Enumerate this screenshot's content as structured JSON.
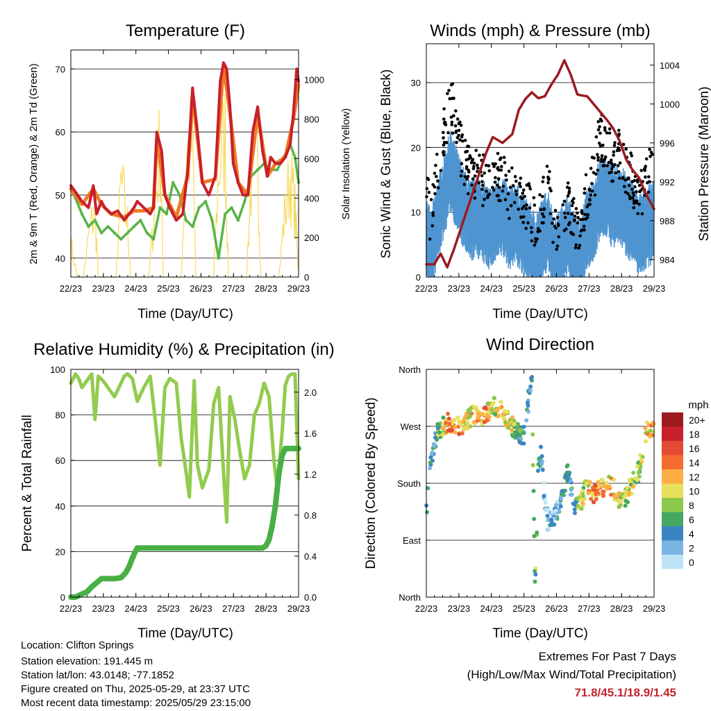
{
  "colors": {
    "temp_2m": "#c8202a",
    "temp_9m": "#f07a25",
    "dewpoint": "#58b548",
    "solar": "#f6d95a",
    "wind": "#4f95d0",
    "gust": "#000000",
    "pressure": "#9b1b1f",
    "rh": "#93cb4e",
    "precip": "#48b045",
    "extreme_value": "#c0262c"
  },
  "x_ticks": [
    "22/23",
    "23/23",
    "24/23",
    "25/23",
    "26/23",
    "27/23",
    "28/23",
    "29/23"
  ],
  "charts": {
    "temperature": {
      "title": "Temperature (F)",
      "xlabel": "Time (Day/UTC)",
      "ylabel_left": "2m & 9m T (Red, Orange) & 2m Td (Green)",
      "ylabel_right": "Solar Insolation (Yellow)",
      "left_ticks": [
        "40",
        "50",
        "60",
        "70"
      ],
      "right_ticks": [
        "0",
        "200",
        "400",
        "600",
        "800",
        "1000"
      ]
    },
    "winds": {
      "title": "Winds (mph) & Pressure (mb)",
      "xlabel": "Time (Day/UTC)",
      "ylabel_left": "Sonic Wind & Gust (Blue, Black)",
      "ylabel_right": "Station Pressure (Maroon)",
      "left_ticks": [
        "0",
        "10",
        "20",
        "30"
      ],
      "right_ticks": [
        "984",
        "988",
        "992",
        "996",
        "1000",
        "1004"
      ]
    },
    "humidity": {
      "title": "Relative Humidity (%) & Precipitation (in)",
      "xlabel": "Time (Day/UTC)",
      "ylabel_left": "Percent & Total Rainfall",
      "left_ticks": [
        "0",
        "20",
        "40",
        "60",
        "80",
        "100"
      ],
      "right_ticks": [
        "0.0",
        "0.4",
        "0.8",
        "1.2",
        "1.6",
        "2.0"
      ]
    },
    "direction": {
      "title": "Wind Direction",
      "xlabel": "Time (Day/UTC)",
      "ylabel_left": "Direction (Colored By Speed)",
      "left_ticks": [
        "North",
        "East",
        "South",
        "West",
        "North"
      ],
      "legend_title": "mph",
      "legend_labels": [
        "20+",
        "18",
        "16",
        "14",
        "12",
        "10",
        "8",
        "6",
        "4",
        "2",
        "0"
      ],
      "legend_colors": [
        "#9b1b1f",
        "#c8202a",
        "#e34a33",
        "#f46d2f",
        "#fdae42",
        "#e8e05a",
        "#8cc84b",
        "#45a862",
        "#3b84c4",
        "#7ab4e3",
        "#bfe3f6"
      ]
    }
  },
  "chart_data": [
    {
      "type": "line",
      "name_ref": "temperature",
      "x_days": [
        22.958,
        29.958
      ],
      "ylim": [
        37,
        73
      ],
      "ylim_right": [
        0,
        1150
      ],
      "series": [
        {
          "name": "2m T",
          "x": [
            22.96,
            23.1,
            23.3,
            23.5,
            23.65,
            23.75,
            23.9,
            24.0,
            24.2,
            24.4,
            24.6,
            24.75,
            24.9,
            25.0,
            25.2,
            25.4,
            25.5,
            25.6,
            25.75,
            25.85,
            26.0,
            26.2,
            26.4,
            26.55,
            26.7,
            26.85,
            27.0,
            27.2,
            27.4,
            27.55,
            27.65,
            27.75,
            27.85,
            27.95,
            28.1,
            28.25,
            28.4,
            28.55,
            28.7,
            28.85,
            29.0,
            29.1,
            29.25,
            29.4,
            29.55,
            29.7,
            29.8,
            29.9,
            29.958
          ],
          "values": [
            51.5,
            50.5,
            49,
            48,
            51.5,
            47,
            49,
            48,
            47,
            47.5,
            46,
            47,
            48,
            49,
            48,
            47,
            48,
            60,
            57,
            50,
            48,
            46,
            47,
            54,
            67,
            60,
            52,
            50,
            53,
            68,
            71,
            70,
            64,
            55,
            52,
            50,
            50,
            60,
            64,
            57,
            53,
            56,
            55,
            55,
            56,
            58,
            63,
            70,
            68
          ]
        },
        {
          "name": "9m T",
          "x": [
            22.96,
            23.3,
            23.65,
            23.9,
            24.2,
            24.6,
            24.9,
            25.2,
            25.5,
            25.6,
            25.85,
            26.2,
            26.55,
            26.7,
            27.0,
            27.4,
            27.65,
            27.85,
            28.1,
            28.4,
            28.7,
            29.0,
            29.25,
            29.55,
            29.8,
            29.958
          ],
          "values": [
            51,
            48.5,
            51,
            48.5,
            47,
            46.5,
            47.5,
            47.5,
            48,
            59,
            50,
            46.5,
            53,
            66,
            52,
            52.5,
            70.5,
            63,
            52,
            50,
            63,
            53,
            55,
            56,
            62,
            67.5
          ]
        },
        {
          "name": "2m Td",
          "x": [
            22.96,
            23.1,
            23.3,
            23.5,
            23.7,
            23.9,
            24.1,
            24.3,
            24.5,
            24.7,
            24.9,
            25.1,
            25.3,
            25.5,
            25.7,
            25.9,
            26.1,
            26.3,
            26.5,
            26.7,
            26.9,
            27.1,
            27.3,
            27.5,
            27.7,
            27.9,
            28.1,
            28.3,
            28.5,
            28.7,
            28.9,
            29.1,
            29.3,
            29.5,
            29.7,
            29.85,
            29.958
          ],
          "values": [
            51,
            49.5,
            47,
            45,
            46,
            44,
            45,
            44,
            43,
            44,
            45,
            46,
            44,
            43,
            48,
            47,
            52,
            50,
            46,
            45,
            48,
            49,
            46,
            40,
            47,
            48,
            46,
            49,
            53,
            54,
            55,
            54,
            54,
            56,
            58,
            56,
            52
          ]
        },
        {
          "name": "Solar",
          "x": [
            22.96,
            23.15,
            23.35,
            23.5,
            23.7,
            23.8,
            24.1,
            24.35,
            24.5,
            24.7,
            24.8,
            25.1,
            25.35,
            25.5,
            25.7,
            25.8,
            26.1,
            26.35,
            26.5,
            26.7,
            26.8,
            27.1,
            27.35,
            27.5,
            27.7,
            27.8,
            28.1,
            28.35,
            28.5,
            28.7,
            28.8,
            29.1,
            29.35,
            29.5,
            29.7,
            29.85,
            29.958
          ],
          "values": [
            250,
            0,
            0,
            300,
            500,
            0,
            0,
            0,
            700,
            400,
            0,
            0,
            0,
            400,
            1000,
            0,
            0,
            0,
            900,
            1000,
            0,
            0,
            0,
            800,
            1050,
            0,
            0,
            0,
            700,
            900,
            0,
            0,
            0,
            400,
            750,
            500,
            0
          ]
        }
      ]
    },
    {
      "type": "scatter",
      "name_ref": "winds",
      "ylim": [
        0,
        36
      ],
      "ylim_right": [
        982.2,
        1006.2
      ],
      "series": [
        {
          "name": "Sonic Wind",
          "x": [
            22.96,
            23.1,
            23.3,
            23.5,
            23.7,
            23.9,
            24.1,
            24.3,
            24.5,
            24.7,
            24.9,
            25.1,
            25.3,
            25.5,
            25.7,
            25.9,
            26.1,
            26.3,
            26.5,
            26.7,
            26.9,
            27.1,
            27.3,
            27.5,
            27.7,
            27.9,
            28.1,
            28.3,
            28.5,
            28.7,
            28.9,
            29.1,
            29.3,
            29.5,
            29.7,
            29.9
          ],
          "values": [
            7,
            4,
            9,
            13,
            17,
            14,
            11,
            9,
            10,
            9,
            8,
            9,
            10,
            8,
            9,
            7,
            6,
            4,
            6,
            8,
            3,
            5,
            7,
            4,
            3,
            8,
            9,
            13,
            13,
            11,
            12,
            10,
            9,
            7,
            8,
            9
          ]
        },
        {
          "name": "Gust",
          "x": [
            22.96,
            23.1,
            23.3,
            23.5,
            23.7,
            23.9,
            24.1,
            24.3,
            24.5,
            24.7,
            24.9,
            25.1,
            25.3,
            25.5,
            25.7,
            25.9,
            26.1,
            26.3,
            26.5,
            26.7,
            26.9,
            27.1,
            27.3,
            27.5,
            27.7,
            27.9,
            28.1,
            28.3,
            28.5,
            28.7,
            28.9,
            29.1,
            29.3,
            29.5,
            29.7,
            29.9
          ],
          "values": [
            14,
            8,
            17,
            22,
            28,
            22,
            18,
            16,
            16,
            15,
            14,
            15,
            16,
            13,
            14,
            12,
            11,
            8,
            11,
            14,
            7,
            9,
            12,
            8,
            7,
            13,
            15,
            22,
            20,
            18,
            19,
            16,
            15,
            12,
            14,
            17
          ]
        },
        {
          "name": "Station Pressure",
          "x": [
            22.96,
            23.2,
            23.4,
            23.6,
            23.8,
            24.0,
            24.3,
            24.6,
            24.8,
            25.0,
            25.3,
            25.6,
            25.8,
            26.0,
            26.2,
            26.4,
            26.6,
            26.8,
            27.0,
            27.2,
            27.4,
            27.6,
            27.7,
            27.9,
            28.1,
            28.3,
            28.5,
            28.7,
            28.9,
            29.1,
            29.3,
            29.5,
            29.7,
            29.958
          ],
          "values": [
            983.5,
            983.5,
            984.6,
            983.2,
            985,
            987,
            990,
            993,
            995,
            996.6,
            996,
            996.9,
            999.4,
            1000.5,
            1001.2,
            1000.6,
            1000.8,
            1002,
            1003,
            1004.5,
            1003,
            1001,
            1000.9,
            1000.8,
            1000,
            999.2,
            998.4,
            997.5,
            996.2,
            994.3,
            993.2,
            992.4,
            990.8,
            989.2
          ]
        }
      ]
    },
    {
      "type": "line",
      "name_ref": "humidity",
      "ylim": [
        0,
        100
      ],
      "ylim_right": [
        0,
        2.2222
      ],
      "series": [
        {
          "name": "Relative Humidity",
          "x": [
            22.96,
            23.1,
            23.2,
            23.3,
            23.45,
            23.6,
            23.7,
            23.8,
            23.95,
            24.1,
            24.3,
            24.5,
            24.6,
            24.7,
            24.85,
            25.0,
            25.2,
            25.4,
            25.55,
            25.7,
            25.85,
            26.0,
            26.2,
            26.35,
            26.5,
            26.6,
            26.75,
            26.85,
            27.0,
            27.2,
            27.35,
            27.5,
            27.65,
            27.75,
            27.85,
            28.0,
            28.15,
            28.3,
            28.45,
            28.6,
            28.75,
            28.9,
            29.05,
            29.2,
            29.3,
            29.45,
            29.55,
            29.65,
            29.75,
            29.85,
            29.958
          ],
          "values": [
            94,
            98,
            96,
            92,
            95,
            98,
            78,
            97,
            95,
            92,
            88,
            94,
            97,
            98,
            96,
            86,
            92,
            97,
            78,
            58,
            92,
            96,
            94,
            70,
            55,
            44,
            95,
            58,
            48,
            56,
            85,
            92,
            55,
            33,
            88,
            78,
            64,
            52,
            58,
            80,
            85,
            94,
            88,
            60,
            48,
            72,
            93,
            97,
            98,
            98,
            52
          ]
        },
        {
          "name": "Total Rainfall",
          "x": [
            22.96,
            23.1,
            23.3,
            23.45,
            23.6,
            23.75,
            23.9,
            24.1,
            24.3,
            24.5,
            24.65,
            24.75,
            24.85,
            24.95,
            25.0,
            25.5,
            26.0,
            26.5,
            27.0,
            27.5,
            28.0,
            28.5,
            28.85,
            28.95,
            29.05,
            29.15,
            29.25,
            29.35,
            29.45,
            29.55,
            29.958
          ],
          "values": [
            0.0,
            0.0,
            0.03,
            0.05,
            0.1,
            0.14,
            0.18,
            0.18,
            0.18,
            0.19,
            0.24,
            0.3,
            0.38,
            0.45,
            0.48,
            0.48,
            0.48,
            0.48,
            0.48,
            0.48,
            0.48,
            0.48,
            0.48,
            0.5,
            0.56,
            0.7,
            0.9,
            1.2,
            1.38,
            1.45,
            1.45
          ]
        }
      ]
    },
    {
      "type": "scatter",
      "name_ref": "direction",
      "ylim": [
        0,
        360
      ],
      "series": [
        {
          "name": "Wind Direction",
          "x": [
            22.98,
            23.05,
            23.15,
            23.3,
            23.45,
            23.6,
            23.8,
            24.0,
            24.2,
            24.4,
            24.6,
            24.8,
            25.0,
            25.2,
            25.4,
            25.6,
            25.8,
            26.0,
            26.1,
            26.2,
            26.3,
            26.4,
            26.5,
            26.6,
            26.7,
            26.9,
            27.1,
            27.3,
            27.5,
            27.7,
            27.9,
            28.1,
            28.3,
            28.5,
            28.7,
            28.9,
            29.1,
            29.3,
            29.5,
            29.7,
            29.9
          ],
          "speed": [
            7,
            4,
            3,
            6,
            9,
            12,
            14,
            12,
            10,
            11,
            13,
            12,
            9,
            11,
            10,
            9,
            5,
            4,
            4,
            6,
            7,
            5,
            3,
            2,
            2,
            3,
            4,
            4,
            5,
            8,
            10,
            13,
            12,
            10,
            11,
            9,
            8,
            9,
            7,
            11,
            12
          ],
          "values": [
            140,
            190,
            230,
            260,
            270,
            275,
            275,
            272,
            278,
            290,
            285,
            290,
            300,
            300,
            285,
            270,
            260,
            255,
            310,
            350,
            5,
            200,
            230,
            150,
            120,
            130,
            150,
            200,
            140,
            150,
            180,
            160,
            170,
            180,
            175,
            150,
            160,
            180,
            200,
            260,
            270
          ]
        }
      ]
    }
  ],
  "info": {
    "location": "Location: Clifton Springs",
    "elevation": "Station elevation: 191.445 m",
    "latlon": "Station lat/lon: 43.0148; -77.1852",
    "created": "Figure created on Thu, 2025-05-29, at 23:37 UTC",
    "recent": "Most recent data timestamp: 2025/05/29 23:15:00"
  },
  "extremes": {
    "title": "Extremes For Past 7 Days",
    "subtitle": "(High/Low/Max Wind/Total Precipitation)",
    "values": "71.8/45.1/18.9/1.45"
  }
}
